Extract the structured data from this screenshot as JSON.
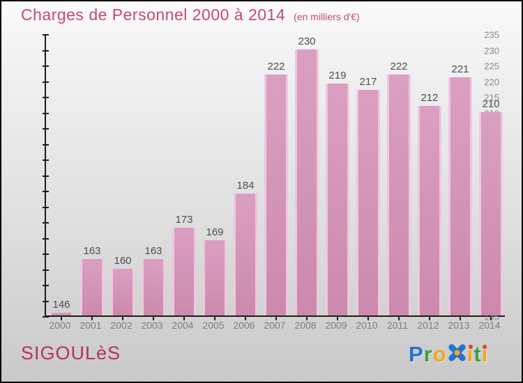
{
  "header": {
    "title": "Charges de Personnel 2000 à 2014",
    "subtitle": "(en milliers d'€)"
  },
  "chart_data": {
    "type": "bar",
    "title": "Charges de Personnel 2000 à 2014",
    "subtitle": "(en milliers d'€)",
    "categories": [
      "2000",
      "2001",
      "2002",
      "2003",
      "2004",
      "2005",
      "2006",
      "2007",
      "2008",
      "2009",
      "2010",
      "2011",
      "2012",
      "2013",
      "2014"
    ],
    "values": [
      146,
      163,
      160,
      163,
      173,
      169,
      184,
      222,
      230,
      219,
      217,
      222,
      212,
      221,
      210
    ],
    "xlabel": "",
    "ylabel": "",
    "ylim": [
      145,
      235
    ],
    "yticks": [
      145,
      150,
      155,
      160,
      165,
      170,
      175,
      180,
      185,
      190,
      195,
      200,
      205,
      210,
      215,
      220,
      225,
      230,
      235
    ],
    "grid": false,
    "legend": "none",
    "bar_color": "#d294b6",
    "bar_edge_color": "#eec8dc",
    "value_label_color": "#4d4d4d",
    "axis_label_color": "#8a8a8a"
  },
  "footer": {
    "location": "SIGOULèS",
    "logo": {
      "name": "Proxiti",
      "letters": [
        {
          "ch": "P",
          "color": "#2273cf"
        },
        {
          "ch": "r",
          "color": "#3aa43a"
        },
        {
          "ch": "o",
          "color": "#f7a41d"
        },
        {
          "ch": "x",
          "icon": "x-logo-icon",
          "color": "#2273cf",
          "center_color": "#f7a41d"
        },
        {
          "ch": "i",
          "color": "#f7a41d",
          "dot_color": "#e2422b"
        },
        {
          "ch": "t",
          "color": "#3aa43a"
        },
        {
          "ch": "i",
          "color": "#f7a41d",
          "dot_color": "#e2422b"
        }
      ]
    }
  },
  "colors": {
    "title": "#c74a6b",
    "footer_location": "#b8305c",
    "axis_line": "#1c1c1c"
  }
}
